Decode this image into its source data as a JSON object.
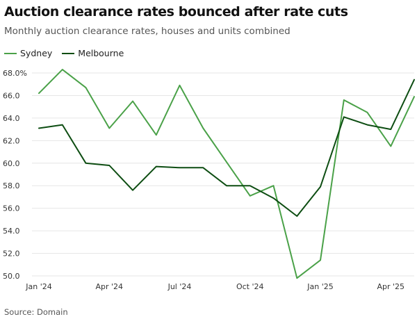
{
  "title": "Auction clearance rates bounced after rate cuts",
  "subtitle": "Monthly auction clearance rates, houses and units combined",
  "source": "Source: Domain",
  "colors": {
    "sydney": "#4aa148",
    "melbourne": "#0d4d12",
    "grid": "#e6e6e6"
  },
  "chart_data": {
    "type": "line",
    "title": "Auction clearance rates bounced after rate cuts",
    "subtitle": "Monthly auction clearance rates, houses and units combined",
    "x": [
      "Jan 2024",
      "Feb 2024",
      "Mar 2024",
      "Apr 2024",
      "May 2024",
      "Jun 2024",
      "Jul 2024",
      "Aug 2024",
      "Sep 2024",
      "Oct 2024",
      "Nov 2024",
      "Dec 2024",
      "Jan 2025",
      "Feb 2025",
      "Mar 2025",
      "Apr 2025",
      "May 2025"
    ],
    "x_tick_labels": [
      "Jan '24",
      "Apr '24",
      "Jul '24",
      "Oct '24",
      "Jan '25",
      "Apr '25"
    ],
    "x_tick_positions": [
      0,
      3,
      6,
      9,
      12,
      15
    ],
    "y_ticks": [
      "68.0%",
      "66.0",
      "64.0",
      "62.0",
      "60.0",
      "58.0",
      "56.0",
      "54.0",
      "52.0",
      "50.0"
    ],
    "y_tick_values": [
      68,
      66,
      64,
      62,
      60,
      58,
      56,
      54,
      52,
      50
    ],
    "ylim": [
      50,
      68
    ],
    "grid": true,
    "legend_position": "top-left",
    "series": [
      {
        "name": "Sydney",
        "color": "#4aa148",
        "values": [
          66.2,
          68.3,
          66.7,
          63.1,
          65.5,
          62.5,
          66.9,
          63.1,
          60.1,
          57.1,
          58.0,
          49.8,
          51.4,
          65.6,
          64.5,
          61.5,
          65.9
        ]
      },
      {
        "name": "Melbourne",
        "color": "#0d4d12",
        "values": [
          63.1,
          63.4,
          60.0,
          59.8,
          57.6,
          59.7,
          59.6,
          59.6,
          58.0,
          58.0,
          56.9,
          55.3,
          57.9,
          64.1,
          63.4,
          63.0,
          67.4
        ]
      }
    ]
  }
}
